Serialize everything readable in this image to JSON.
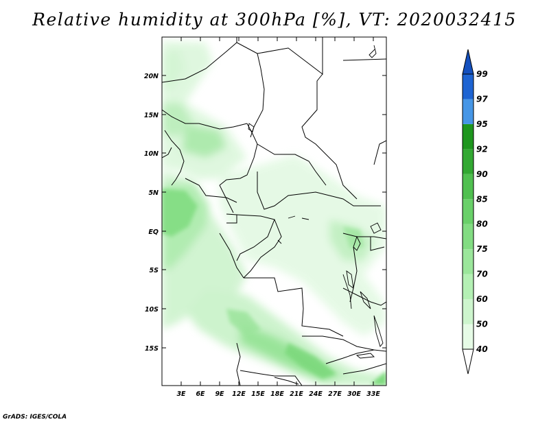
{
  "title": "Relative humidity at 300hPa [%], VT: 2020032415",
  "credit": "GrADS: IGES/COLA",
  "map": {
    "lat_ticks": [
      "20N",
      "15N",
      "10N",
      "5N",
      "EQ",
      "5S",
      "10S",
      "15S"
    ],
    "lon_ticks": [
      "3E",
      "6E",
      "9E",
      "12E",
      "15E",
      "18E",
      "21E",
      "24E",
      "27E",
      "30E",
      "33E"
    ]
  },
  "colorbar": {
    "levels": [
      "40",
      "50",
      "60",
      "70",
      "75",
      "80",
      "85",
      "90",
      "92",
      "95",
      "97",
      "99"
    ],
    "colors": [
      "#ffffff",
      "#e6fbe6",
      "#cdf5cd",
      "#b4f0b4",
      "#9be69b",
      "#82dc82",
      "#69d069",
      "#50c050",
      "#32a832",
      "#1e961e",
      "#4696e6",
      "#1e64d2",
      "#1450be"
    ]
  }
}
